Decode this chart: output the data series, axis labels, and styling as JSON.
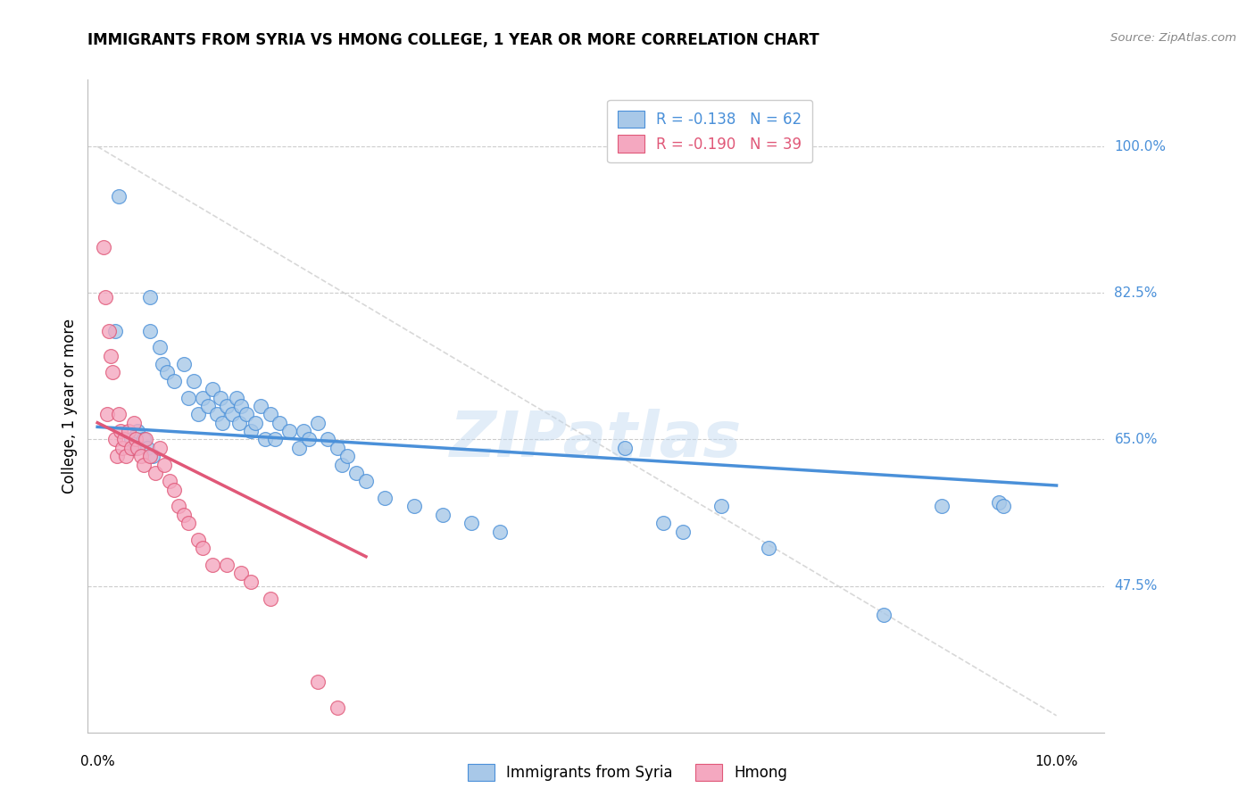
{
  "title": "IMMIGRANTS FROM SYRIA VS HMONG COLLEGE, 1 YEAR OR MORE CORRELATION CHART",
  "source": "Source: ZipAtlas.com",
  "ylabel": "College, 1 year or more",
  "y_ticks": [
    47.5,
    65.0,
    82.5,
    100.0
  ],
  "y_tick_labels": [
    "47.5%",
    "65.0%",
    "82.5%",
    "100.0%"
  ],
  "x_range": [
    0.0,
    10.0
  ],
  "y_range": [
    32.0,
    107.0
  ],
  "legend_syria_r": "R = -0.138",
  "legend_syria_n": "N = 62",
  "legend_hmong_r": "R = -0.190",
  "legend_hmong_n": "N = 39",
  "color_syria": "#a8c8e8",
  "color_hmong": "#f4a8c0",
  "color_syria_line": "#4a90d9",
  "color_hmong_line": "#e05878",
  "color_diag": "#c8c8c8",
  "color_ytick_labels": "#4a90d9",
  "watermark": "ZIPatlas",
  "syria_line_x": [
    0.0,
    10.0
  ],
  "syria_line_y": [
    66.5,
    59.5
  ],
  "hmong_line_x": [
    0.0,
    2.8
  ],
  "hmong_line_y": [
    67.0,
    51.0
  ],
  "diag_line_x": [
    0.0,
    10.0
  ],
  "diag_line_y": [
    100.0,
    32.0
  ],
  "syria_x": [
    0.22,
    0.18,
    0.55,
    0.55,
    0.65,
    0.68,
    0.72,
    0.8,
    0.9,
    0.95,
    1.0,
    1.05,
    1.1,
    1.15,
    1.2,
    1.25,
    1.28,
    1.3,
    1.35,
    1.4,
    1.45,
    1.48,
    1.5,
    1.55,
    1.6,
    1.65,
    1.7,
    1.75,
    1.8,
    1.85,
    1.9,
    2.0,
    2.1,
    2.15,
    2.2,
    2.3,
    2.4,
    2.5,
    2.55,
    2.6,
    2.7,
    2.8,
    3.0,
    3.3,
    3.6,
    3.9,
    4.2,
    5.5,
    5.9,
    6.1,
    6.5,
    7.0,
    8.2,
    8.8,
    9.4,
    9.45,
    0.35,
    0.38,
    0.42,
    0.48,
    0.52,
    0.58
  ],
  "syria_y": [
    94.0,
    78.0,
    82.0,
    78.0,
    76.0,
    74.0,
    73.0,
    72.0,
    74.0,
    70.0,
    72.0,
    68.0,
    70.0,
    69.0,
    71.0,
    68.0,
    70.0,
    67.0,
    69.0,
    68.0,
    70.0,
    67.0,
    69.0,
    68.0,
    66.0,
    67.0,
    69.0,
    65.0,
    68.0,
    65.0,
    67.0,
    66.0,
    64.0,
    66.0,
    65.0,
    67.0,
    65.0,
    64.0,
    62.0,
    63.0,
    61.0,
    60.0,
    58.0,
    57.0,
    56.0,
    55.0,
    54.0,
    64.0,
    55.0,
    54.0,
    57.0,
    52.0,
    44.0,
    57.0,
    57.5,
    57.0,
    65.0,
    64.0,
    66.0,
    65.0,
    64.0,
    63.0
  ],
  "hmong_x": [
    0.06,
    0.08,
    0.1,
    0.12,
    0.14,
    0.16,
    0.18,
    0.2,
    0.22,
    0.24,
    0.26,
    0.28,
    0.3,
    0.32,
    0.35,
    0.38,
    0.4,
    0.42,
    0.45,
    0.48,
    0.5,
    0.55,
    0.6,
    0.65,
    0.7,
    0.75,
    0.8,
    0.85,
    0.9,
    0.95,
    1.05,
    1.1,
    1.2,
    1.35,
    1.5,
    1.6,
    1.8,
    2.3,
    2.5
  ],
  "hmong_y": [
    88.0,
    82.0,
    68.0,
    78.0,
    75.0,
    73.0,
    65.0,
    63.0,
    68.0,
    66.0,
    64.0,
    65.0,
    63.0,
    66.0,
    64.0,
    67.0,
    65.0,
    64.0,
    63.0,
    62.0,
    65.0,
    63.0,
    61.0,
    64.0,
    62.0,
    60.0,
    59.0,
    57.0,
    56.0,
    55.0,
    53.0,
    52.0,
    50.0,
    50.0,
    49.0,
    48.0,
    46.0,
    36.0,
    33.0
  ]
}
